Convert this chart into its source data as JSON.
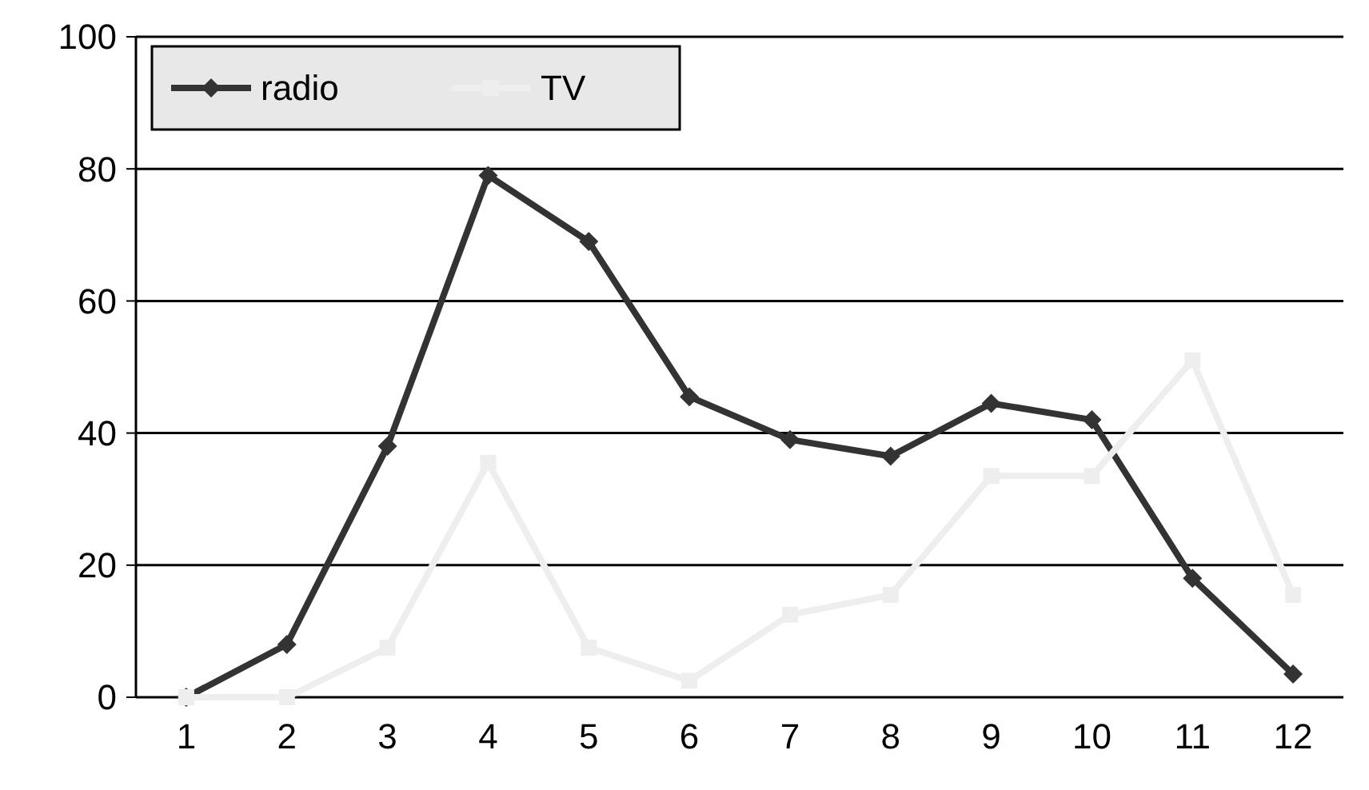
{
  "chart_data": {
    "type": "line",
    "x": [
      1,
      2,
      3,
      4,
      5,
      6,
      7,
      8,
      9,
      10,
      11,
      12
    ],
    "xlim": [
      0.5,
      12.5
    ],
    "xticks": [
      1,
      2,
      3,
      4,
      5,
      6,
      7,
      8,
      9,
      10,
      11,
      12
    ],
    "series": [
      {
        "name": "radio",
        "color": "#333333",
        "marker": "diamond",
        "values": [
          0,
          8,
          38,
          79,
          69,
          45.5,
          39,
          36.5,
          44.5,
          42,
          18,
          3.5
        ]
      },
      {
        "name": "TV",
        "color": "#eeeeee",
        "marker": "square",
        "values": [
          0,
          0,
          7.5,
          35.5,
          7.5,
          2.5,
          12.5,
          15.5,
          33.5,
          33.5,
          51,
          15.5
        ]
      }
    ],
    "ylim": [
      0,
      100
    ],
    "yticks": [
      0,
      20,
      40,
      60,
      80,
      100
    ],
    "grid": "y",
    "legend": "top left",
    "line_style": "solid"
  }
}
